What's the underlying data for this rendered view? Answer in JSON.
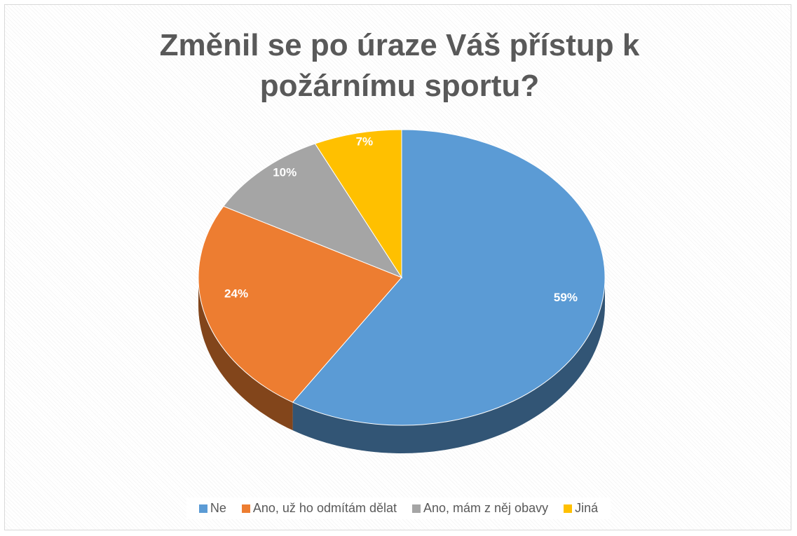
{
  "chart_data": {
    "type": "pie",
    "title": "Změnil se po úraze Váš přístup k požárnímu sportu?",
    "categories": [
      "Ne",
      "Ano, už ho odmítám dělat",
      "Ano, mám z něj obavy",
      "Jiná"
    ],
    "values": [
      59,
      24,
      10,
      7
    ],
    "value_labels": [
      "59%",
      "24%",
      "10%",
      "7%"
    ],
    "colors": [
      "#5b9bd5",
      "#ed7d31",
      "#a5a5a5",
      "#ffc000"
    ],
    "legend": "bottom"
  }
}
